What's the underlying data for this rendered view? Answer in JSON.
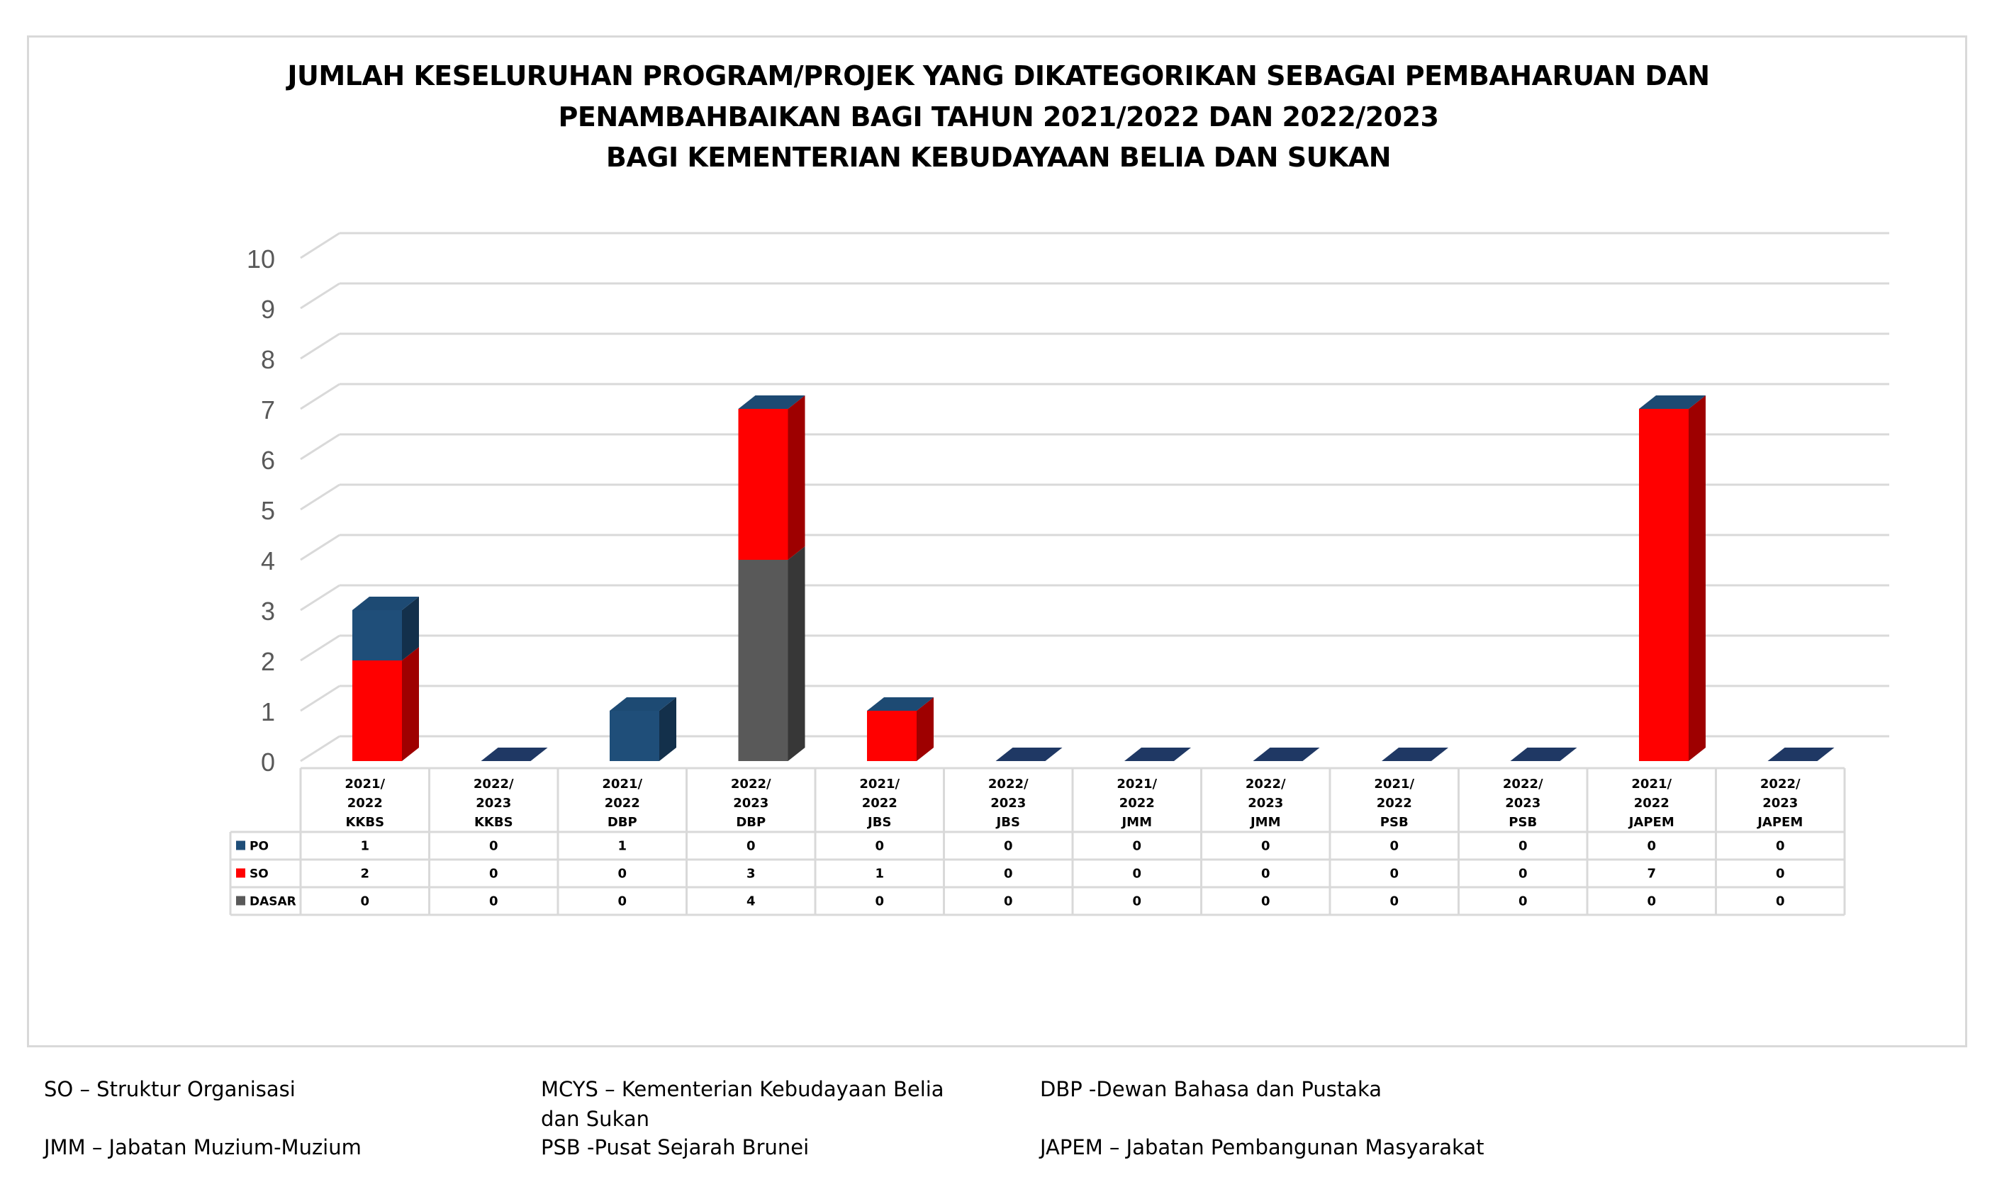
{
  "title_lines": [
    "JUMLAH KESELURUHAN PROGRAM/PROJEK YANG DIKATEGORIKAN SEBAGAI PEMBAHARUAN DAN",
    "PENAMBAHBAIKAN BAGI TAHUN 2021/2022 DAN 2022/2023",
    "BAGI KEMENTERIAN KEBUDAYAAN BELIA DAN SUKAN"
  ],
  "chart_data": {
    "type": "bar",
    "stacked": true,
    "three_d": true,
    "title": "JUMLAH KESELURUHAN PROGRAM/PROJEK YANG DIKATEGORIKAN SEBAGAI PEMBAHARUAN DAN PENAMBAHBAIKAN BAGI TAHUN 2021/2022 DAN 2022/2023 BAGI KEMENTERIAN KEBUDAYAAN BELIA DAN SUKAN",
    "categories": [
      [
        "2021/",
        "2022",
        "KKBS"
      ],
      [
        "2022/",
        "2023",
        "KKBS"
      ],
      [
        "2021/",
        "2022",
        "DBP"
      ],
      [
        "2022/",
        "2023",
        "DBP"
      ],
      [
        "2021/",
        "2022",
        "JBS"
      ],
      [
        "2022/",
        "2023",
        "JBS"
      ],
      [
        "2021/",
        "2022",
        "JMM"
      ],
      [
        "2022/",
        "2023",
        "JMM"
      ],
      [
        "2021/",
        "2022",
        "PSB"
      ],
      [
        "2022/",
        "2023",
        "PSB"
      ],
      [
        "2021/",
        "2022",
        "JAPEM"
      ],
      [
        "2022/",
        "2023",
        "JAPEM"
      ]
    ],
    "series": [
      {
        "name": "PO",
        "color": "#1f4e79",
        "values": [
          1,
          0,
          1,
          0,
          0,
          0,
          0,
          0,
          0,
          0,
          0,
          0
        ]
      },
      {
        "name": "SO",
        "color": "#ff0000",
        "values": [
          2,
          0,
          0,
          3,
          1,
          0,
          0,
          0,
          0,
          0,
          7,
          0
        ]
      },
      {
        "name": "DASAR",
        "color": "#595959",
        "values": [
          0,
          0,
          0,
          4,
          0,
          0,
          0,
          0,
          0,
          0,
          0,
          0
        ]
      }
    ],
    "stack_order_bottom_to_top": [
      "DASAR",
      "SO",
      "PO"
    ],
    "ylim": [
      0,
      10
    ],
    "yticks": [
      "0",
      "1",
      "2",
      "3",
      "4",
      "5",
      "6",
      "7",
      "8",
      "9",
      "10"
    ],
    "grid": true,
    "legend": "data table below chart"
  },
  "footnotes": [
    {
      "text": "SO – Struktur Organisasi"
    },
    {
      "text": "MCYS – Kementerian Kebudayaan Belia dan Sukan"
    },
    {
      "text": "DBP -Dewan Bahasa dan Pustaka"
    },
    {
      "text": "JMM – Jabatan Muzium-Muzium"
    },
    {
      "text": "PSB -Pusat Sejarah Brunei"
    },
    {
      "text": "JAPEM – Jabatan Pembangunan Masyarakat"
    }
  ]
}
